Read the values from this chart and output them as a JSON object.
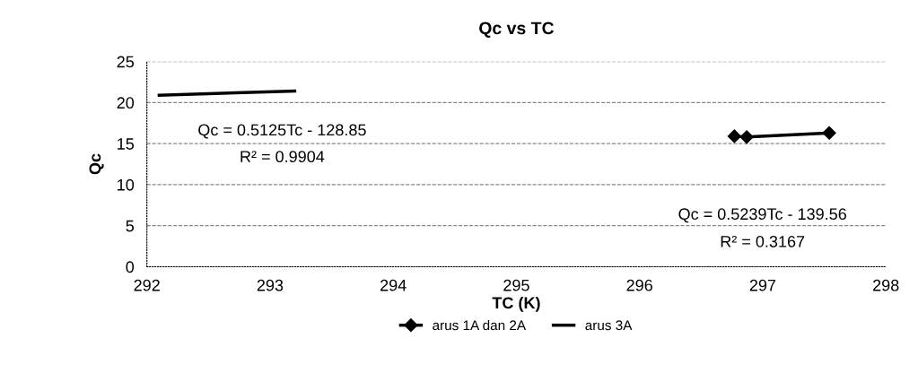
{
  "chart_data": {
    "type": "line",
    "title": "Qc vs TC",
    "xlabel": "TC (K)",
    "ylabel": "Qc",
    "xlim": [
      292,
      298
    ],
    "xticks": [
      292,
      293,
      294,
      295,
      296,
      297,
      298
    ],
    "ylim": [
      0,
      25
    ],
    "yticks": [
      0,
      5,
      10,
      15,
      20,
      25
    ],
    "grid": "y",
    "legend": "bottom",
    "series": [
      {
        "name": "arus 1A dan 2A",
        "color": "#000000",
        "marker": "diamond",
        "x": [
          296.77,
          296.87,
          297.54
        ],
        "values": [
          15.9,
          15.8,
          16.3
        ]
      },
      {
        "name": "arus 3A",
        "color": "#000000",
        "marker": "none",
        "x": [
          292.1,
          293.2
        ],
        "values": [
          20.9,
          21.4
        ]
      }
    ],
    "annotations": [
      "Qc = 0.5125Tc - 128.85",
      "R² = 0.9904",
      "Qc = 0.5239Tc - 139.56",
      "R² = 0.3167"
    ]
  }
}
